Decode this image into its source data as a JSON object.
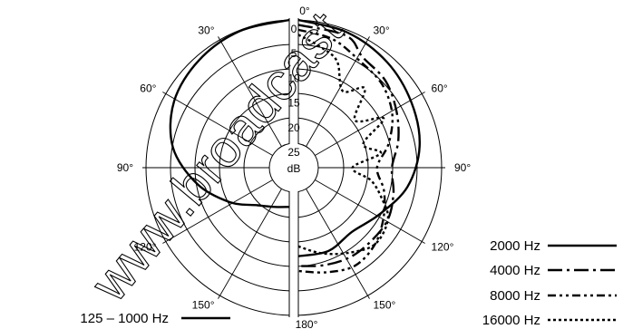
{
  "chart_data": {
    "type": "polar",
    "center_label": "dB",
    "radial_ticks": [
      "0",
      "5",
      "10",
      "15",
      "20",
      "25"
    ],
    "radial_values": [
      0,
      5,
      10,
      15,
      20,
      25
    ],
    "angle_labels": [
      "0°",
      "30°",
      "60°",
      "90°",
      "120°",
      "150°",
      "180°",
      "30°",
      "60°",
      "90°",
      "120°",
      "150°"
    ],
    "angle_values": [
      0,
      30,
      60,
      90,
      120,
      150,
      180,
      -30,
      -60,
      -90,
      -120,
      -150
    ],
    "watermark": "www.broadcast",
    "series": [
      {
        "name": "125 – 1000 Hz",
        "dash": "",
        "half": "left",
        "points": [
          [
            0,
            0
          ],
          [
            20,
            0.5
          ],
          [
            40,
            1.5
          ],
          [
            60,
            3
          ],
          [
            80,
            6
          ],
          [
            100,
            11
          ],
          [
            120,
            16
          ],
          [
            140,
            20
          ],
          [
            160,
            21.5
          ],
          [
            180,
            22
          ]
        ]
      },
      {
        "name": "2000 Hz",
        "dash": "",
        "half": "right",
        "points": [
          [
            0,
            0
          ],
          [
            20,
            0.8
          ],
          [
            40,
            2
          ],
          [
            60,
            3.5
          ],
          [
            80,
            5
          ],
          [
            100,
            7.5
          ],
          [
            120,
            11
          ],
          [
            140,
            13
          ],
          [
            160,
            12
          ],
          [
            180,
            12
          ]
        ]
      },
      {
        "name": "4000 Hz",
        "dash": "16 5 3 5",
        "half": "right",
        "points": [
          [
            0,
            1
          ],
          [
            20,
            1.5
          ],
          [
            30,
            4
          ],
          [
            45,
            5
          ],
          [
            60,
            7
          ],
          [
            75,
            9
          ],
          [
            90,
            11
          ],
          [
            105,
            10
          ],
          [
            120,
            9
          ],
          [
            135,
            9
          ],
          [
            150,
            9
          ],
          [
            165,
            9.5
          ],
          [
            180,
            10
          ]
        ]
      },
      {
        "name": "8000 Hz",
        "dash": "9 4 3 4 3 4",
        "half": "right",
        "points": [
          [
            0,
            2
          ],
          [
            15,
            3
          ],
          [
            30,
            5
          ],
          [
            45,
            6
          ],
          [
            60,
            8
          ],
          [
            75,
            11
          ],
          [
            90,
            14
          ],
          [
            105,
            12
          ],
          [
            120,
            10
          ],
          [
            135,
            8
          ],
          [
            150,
            7
          ],
          [
            165,
            8
          ],
          [
            180,
            9
          ]
        ]
      },
      {
        "name": "16000 Hz",
        "dash": "3 3",
        "half": "right",
        "points": [
          [
            0,
            3
          ],
          [
            10,
            5
          ],
          [
            20,
            7
          ],
          [
            30,
            12
          ],
          [
            40,
            9
          ],
          [
            50,
            15
          ],
          [
            60,
            10
          ],
          [
            70,
            16
          ],
          [
            80,
            13
          ],
          [
            90,
            19
          ],
          [
            100,
            15
          ],
          [
            110,
            12
          ],
          [
            120,
            9
          ],
          [
            135,
            8
          ],
          [
            150,
            10
          ],
          [
            165,
            12
          ],
          [
            180,
            14
          ]
        ]
      }
    ]
  }
}
